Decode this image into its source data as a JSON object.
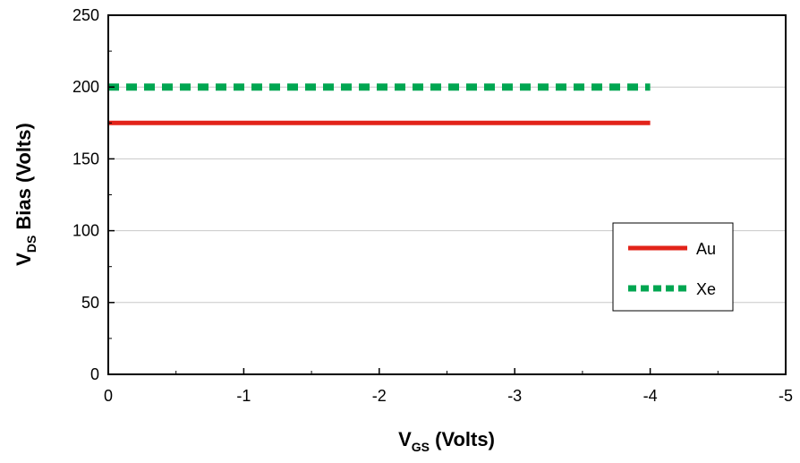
{
  "chart_data": {
    "type": "line",
    "xlabel": {
      "main": "V",
      "sub": "GS",
      "rest": " (Volts)"
    },
    "ylabel": {
      "main": "V",
      "sub": "DS",
      "rest": " Bias (Volts)"
    },
    "xlim": [
      0,
      -5
    ],
    "ylim": [
      0,
      250
    ],
    "xticks": [
      0,
      -1,
      -2,
      -3,
      -4,
      -5
    ],
    "xtick_labels": [
      "0",
      "-1",
      "-2",
      "-3",
      "-4",
      "-5"
    ],
    "yticks": [
      0,
      50,
      100,
      150,
      200,
      250
    ],
    "ytick_labels": [
      "0",
      "50",
      "100",
      "150",
      "200",
      "250"
    ],
    "grid": "horizontal",
    "legend_position": "right",
    "series": [
      {
        "name": "Au",
        "x": [
          0,
          -4
        ],
        "y": [
          175,
          175
        ],
        "color": "#e2231a",
        "style": "solid"
      },
      {
        "name": "Xe",
        "x": [
          0,
          -4
        ],
        "y": [
          200,
          200
        ],
        "color": "#00a651",
        "style": "dashed"
      }
    ]
  }
}
